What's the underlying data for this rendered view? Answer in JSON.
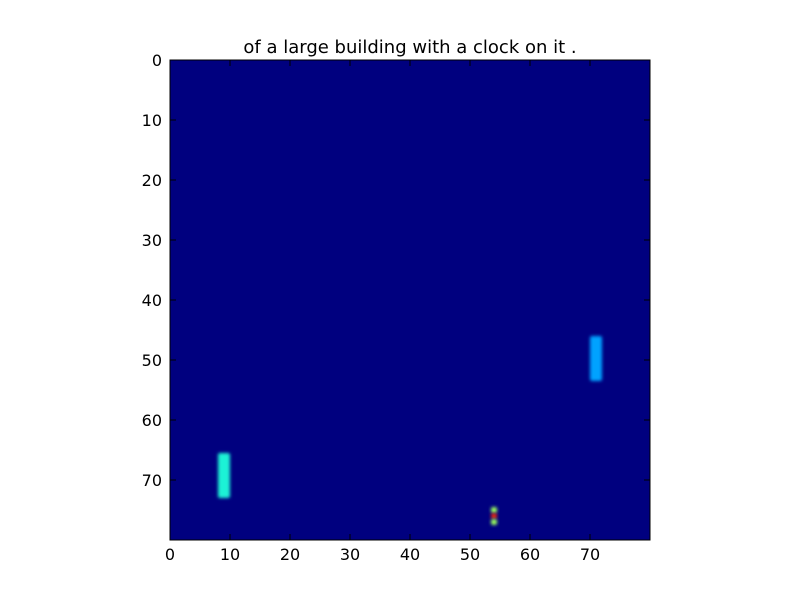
{
  "chart_data": {
    "type": "heatmap",
    "title": "of a large building with a clock on it .",
    "xlabel": "",
    "ylabel": "",
    "grid": false,
    "legend": "none",
    "colormap": "jet",
    "background_value": 0.0,
    "background_color": "#00007f",
    "xlim": [
      0,
      80
    ],
    "ylim": [
      80,
      0
    ],
    "y_inverted": true,
    "x_ticks": [
      "0",
      "10",
      "20",
      "30",
      "40",
      "50",
      "60",
      "70"
    ],
    "y_ticks": [
      "0",
      "10",
      "20",
      "30",
      "40",
      "50",
      "60",
      "70"
    ],
    "highlights": [
      {
        "name": "left-bar",
        "x": [
          8,
          10
        ],
        "y": [
          65.5,
          73
        ],
        "value": 0.45,
        "color": "#1ef2d6"
      },
      {
        "name": "right-bar",
        "x": [
          70,
          72
        ],
        "y": [
          46,
          53.5
        ],
        "value": 0.33,
        "color": "#00a2ff"
      },
      {
        "name": "bottom-spot-1",
        "x": [
          53.5,
          54.5
        ],
        "y": [
          74.5,
          75.5
        ],
        "value": 0.6,
        "color": "#9bff5a"
      },
      {
        "name": "bottom-spot-2",
        "x": [
          53.5,
          54.5
        ],
        "y": [
          75.6,
          76.4
        ],
        "value": 0.95,
        "color": "#ff2a00"
      },
      {
        "name": "bottom-spot-3",
        "x": [
          53.5,
          54.5
        ],
        "y": [
          76.5,
          77.5
        ],
        "value": 0.6,
        "color": "#9bff5a"
      }
    ]
  }
}
